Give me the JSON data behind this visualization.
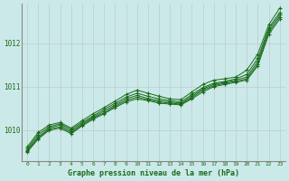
{
  "title": "Graphe pression niveau de la mer (hPa)",
  "bg_color": "#cce9e9",
  "grid_color": "#bbcccc",
  "line_color": "#1a6b1a",
  "marker": "+",
  "xlim": [
    -0.5,
    23.5
  ],
  "ylim": [
    1009.3,
    1012.9
  ],
  "yticks": [
    1010,
    1011,
    1012
  ],
  "xticks": [
    0,
    1,
    2,
    3,
    4,
    5,
    6,
    7,
    8,
    9,
    10,
    11,
    12,
    13,
    14,
    15,
    16,
    17,
    18,
    19,
    20,
    21,
    22,
    23
  ],
  "series": [
    [
      1009.5,
      1009.8,
      1010.0,
      1010.05,
      1009.92,
      1010.1,
      1010.25,
      1010.38,
      1010.52,
      1010.65,
      1010.72,
      1010.68,
      1010.62,
      1010.6,
      1010.58,
      1010.72,
      1010.88,
      1011.0,
      1011.05,
      1011.1,
      1011.15,
      1011.48,
      1012.2,
      1012.55
    ],
    [
      1009.52,
      1009.82,
      1010.02,
      1010.08,
      1009.95,
      1010.12,
      1010.28,
      1010.4,
      1010.55,
      1010.68,
      1010.76,
      1010.7,
      1010.65,
      1010.62,
      1010.6,
      1010.75,
      1010.92,
      1011.02,
      1011.08,
      1011.12,
      1011.18,
      1011.52,
      1012.25,
      1012.6
    ],
    [
      1009.55,
      1009.85,
      1010.05,
      1010.12,
      1009.98,
      1010.15,
      1010.3,
      1010.44,
      1010.58,
      1010.72,
      1010.8,
      1010.73,
      1010.68,
      1010.65,
      1010.62,
      1010.78,
      1010.95,
      1011.05,
      1011.1,
      1011.15,
      1011.22,
      1011.58,
      1012.3,
      1012.65
    ],
    [
      1009.58,
      1009.9,
      1010.08,
      1010.15,
      1010.02,
      1010.18,
      1010.33,
      1010.48,
      1010.62,
      1010.76,
      1010.85,
      1010.78,
      1010.72,
      1010.68,
      1010.65,
      1010.82,
      1010.98,
      1011.08,
      1011.12,
      1011.18,
      1011.28,
      1011.65,
      1012.35,
      1012.7
    ],
    [
      1009.62,
      1009.95,
      1010.12,
      1010.18,
      1010.05,
      1010.22,
      1010.38,
      1010.52,
      1010.67,
      1010.82,
      1010.92,
      1010.85,
      1010.78,
      1010.72,
      1010.7,
      1010.88,
      1011.05,
      1011.15,
      1011.18,
      1011.22,
      1011.38,
      1011.75,
      1012.42,
      1012.8
    ]
  ]
}
